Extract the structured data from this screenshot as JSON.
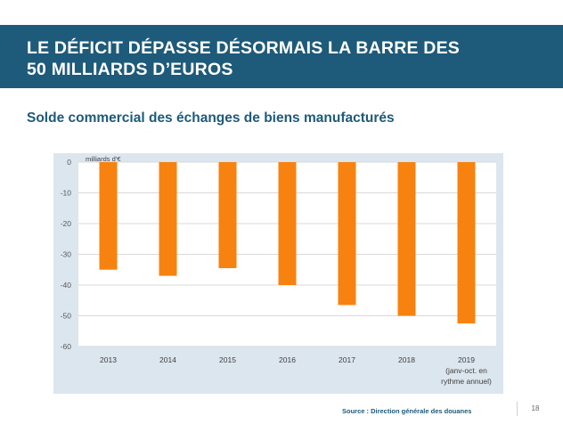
{
  "slide": {
    "title_line1": "LE DÉFICIT DÉPASSE DÉSORMAIS LA BARRE DES",
    "title_line2": "50 MILLIARDS D’EUROS",
    "subtitle": "Solde commercial des échanges de biens manufacturés",
    "source": "Source : Direction générale des douanes",
    "page_number": "18"
  },
  "colors": {
    "banner": "#1e5a7a",
    "bar": "#f7820f",
    "chart_background": "#dce6ef"
  },
  "chart_data": {
    "type": "bar",
    "unit_label": "milliards d’€",
    "categories": [
      [
        "2013"
      ],
      [
        "2014"
      ],
      [
        "2015"
      ],
      [
        "2016"
      ],
      [
        "2017"
      ],
      [
        "2018"
      ],
      [
        "2019",
        "(janv-oct. en",
        "rythme annuel)"
      ]
    ],
    "values": [
      -35,
      -37,
      -34.5,
      -40,
      -46.5,
      -50,
      -52.5
    ],
    "ylim": [
      -60,
      0
    ],
    "yticks": [
      0,
      -10,
      -20,
      -30,
      -40,
      -50,
      -60
    ],
    "grid": true,
    "legend": "none"
  }
}
